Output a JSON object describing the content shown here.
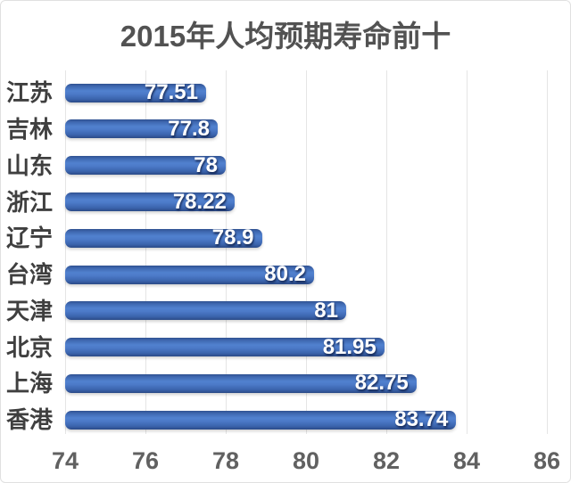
{
  "title": "2015年人均预期寿命前十",
  "chart_data": {
    "type": "bar",
    "orientation": "horizontal",
    "title": "2015年人均预期寿命前十",
    "categories": [
      "江苏",
      "吉林",
      "山东",
      "浙江",
      "辽宁",
      "台湾",
      "天津",
      "北京",
      "上海",
      "香港"
    ],
    "values": [
      77.51,
      77.8,
      78,
      78.22,
      78.9,
      80.2,
      81,
      81.95,
      82.75,
      83.74
    ],
    "value_labels": [
      "77.51",
      "77.8",
      "78",
      "78.22",
      "78.9",
      "80.2",
      "81",
      "81.95",
      "82.75",
      "83.74"
    ],
    "x_ticks": [
      74,
      76,
      78,
      80,
      82,
      84,
      86
    ],
    "xlim": [
      74,
      86
    ],
    "xlabel": "",
    "ylabel": "",
    "grid": true,
    "legend": false,
    "order": "smallest value at top, largest at bottom"
  },
  "colors": {
    "bar_base": "#4472c4",
    "bar_border_dark": "#2b4a87",
    "title_text": "#525252",
    "category_text": "#3f3f3f",
    "axis_text": "#616161",
    "value_text": "#ffffff",
    "gridline": "#e5e5e5",
    "background": "#ffffff",
    "frame_border": "#e0e0e0"
  }
}
